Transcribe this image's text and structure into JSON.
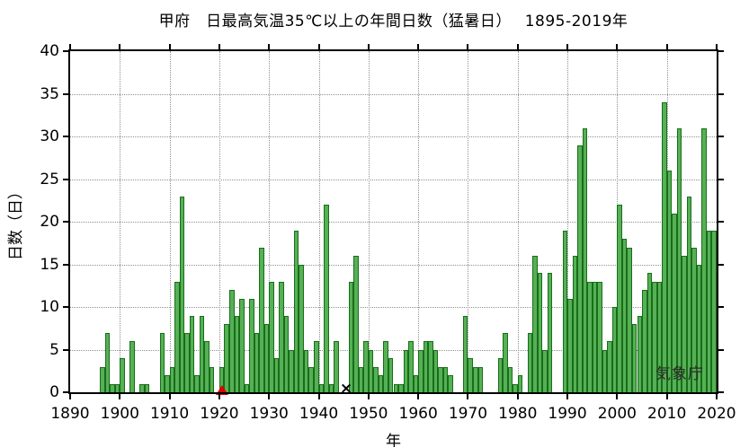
{
  "page": {
    "background": "#ffffff"
  },
  "chart_data": {
    "type": "bar",
    "title": "甲府　日最高気温35℃以上の年間日数（猛暑日）　 1895-2019年",
    "xlabel": "年",
    "ylabel": "日数（日）",
    "source_label": "気象庁",
    "xlim": [
      1890,
      2020
    ],
    "ylim": [
      0,
      40
    ],
    "x_ticks": [
      1890,
      1900,
      1910,
      1920,
      1930,
      1940,
      1950,
      1960,
      1970,
      1980,
      1990,
      2000,
      2010,
      2020
    ],
    "y_ticks": [
      0,
      5,
      10,
      15,
      20,
      25,
      30,
      35,
      40
    ],
    "grid": "dotted",
    "grid_color": "#909090",
    "axis_color": "#000000",
    "bar_fill": "#56b056",
    "bar_border": "#186e18",
    "years_start": 1895,
    "years_end": 2019,
    "values": [
      0,
      3,
      7,
      1,
      1,
      4,
      0,
      6,
      0,
      1,
      1,
      0,
      0,
      7,
      2,
      3,
      13,
      23,
      7,
      9,
      2,
      9,
      6,
      3,
      0,
      3,
      8,
      12,
      9,
      11,
      1,
      11,
      7,
      17,
      8,
      13,
      4,
      13,
      9,
      5,
      19,
      15,
      5,
      3,
      6,
      1,
      22,
      1,
      6,
      0,
      null,
      13,
      16,
      3,
      6,
      5,
      3,
      2,
      6,
      4,
      1,
      1,
      5,
      6,
      2,
      5,
      6,
      6,
      5,
      3,
      3,
      2,
      0,
      0,
      9,
      4,
      3,
      3,
      0,
      0,
      0,
      4,
      7,
      3,
      1,
      2,
      0,
      7,
      16,
      14,
      5,
      14,
      0,
      0,
      19,
      11,
      16,
      29,
      31,
      13,
      13,
      13,
      5,
      6,
      10,
      22,
      18,
      17,
      8,
      9,
      12,
      14,
      13,
      13,
      34,
      26,
      21,
      31,
      16,
      23,
      17,
      15,
      31,
      19,
      19
    ],
    "missing_year_marker": {
      "year": 1945,
      "symbol": "×",
      "color": "#000000"
    },
    "relocation_marker": {
      "year": 1920,
      "symbol": "▲",
      "color": "#e00000"
    }
  }
}
